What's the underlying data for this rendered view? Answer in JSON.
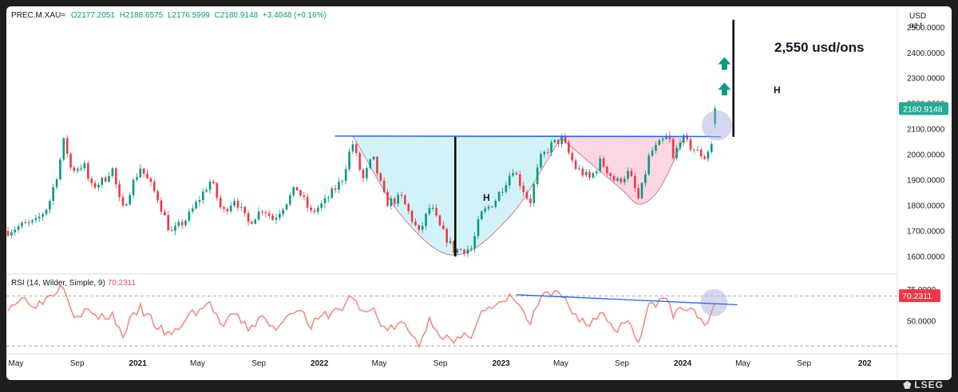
{
  "header": {
    "symbol": "PREC.M.XAU=",
    "open": "O2177.2051",
    "high": "H2188.6575",
    "low": "L2176.5999",
    "close": "C2180.9148",
    "change": "+3.4048 (+0.16%)"
  },
  "price_axis": {
    "currency": "USD",
    "unit": "oz t",
    "last_value": "2180.9148"
  },
  "rsi": {
    "title": "RSI (14, Wilder, Simple, 9)",
    "value": "70.2311",
    "last_value": "70.2311"
  },
  "annotations": {
    "target": "2,550 usd/ons",
    "cup_h": "H",
    "target_h": "H"
  },
  "branding": {
    "logo": "LSEG"
  },
  "colors": {
    "up": "#089981",
    "down": "#f23645",
    "resistance": "#2962ff",
    "cup_fill": "#b2ebf2",
    "handle_fill": "#f8bbd0",
    "rsi_line": "#f28b82",
    "highlight": "#9fa8da",
    "last_price_bg": "#22ab94",
    "rsi_badge_bg": "#f23645"
  },
  "chart_data": [
    {
      "type": "candlestick",
      "title": "PREC.M.XAU= (Gold spot, USD/oz t)",
      "y_axis": {
        "ticks": [
          1600,
          1700,
          1800,
          1900,
          2000,
          2100,
          2200,
          2300,
          2400,
          2500
        ],
        "tick_labels": [
          "1600.0000",
          "1700.0000",
          "1800.0000",
          "1900.0000",
          "2000.0000",
          "2100.0000",
          "2200.0000",
          "2300.0000",
          "2400.0000",
          "2500.0000"
        ],
        "ylim": [
          1540,
          2570
        ]
      },
      "x_axis": {
        "range": [
          "2020-04-15",
          "2025-03-01"
        ],
        "ticks": [
          {
            "date": "2020-05-01",
            "label": "May"
          },
          {
            "date": "2020-09-01",
            "label": "Sep"
          },
          {
            "date": "2021-01-01",
            "label": "2021"
          },
          {
            "date": "2021-05-01",
            "label": "May"
          },
          {
            "date": "2021-09-01",
            "label": "Sep"
          },
          {
            "date": "2022-01-01",
            "label": "2022"
          },
          {
            "date": "2022-05-01",
            "label": "May"
          },
          {
            "date": "2022-09-01",
            "label": "Sep"
          },
          {
            "date": "2023-01-01",
            "label": "2023"
          },
          {
            "date": "2023-05-01",
            "label": "May"
          },
          {
            "date": "2023-09-01",
            "label": "Sep"
          },
          {
            "date": "2024-01-01",
            "label": "2024"
          },
          {
            "date": "2024-05-01",
            "label": "May"
          },
          {
            "date": "2024-09-01",
            "label": "Sep"
          },
          {
            "date": "2025-01-01",
            "label": "202"
          }
        ]
      },
      "close_path": [
        [
          "2020-04-15",
          1700
        ],
        [
          "2020-05-10",
          1720
        ],
        [
          "2020-06-10",
          1735
        ],
        [
          "2020-07-05",
          1800
        ],
        [
          "2020-07-25",
          1940
        ],
        [
          "2020-08-06",
          2060
        ],
        [
          "2020-08-20",
          1940
        ],
        [
          "2020-09-15",
          1960
        ],
        [
          "2020-09-28",
          1870
        ],
        [
          "2020-10-25",
          1900
        ],
        [
          "2020-11-10",
          1950
        ],
        [
          "2020-11-30",
          1775
        ],
        [
          "2020-12-20",
          1880
        ],
        [
          "2021-01-06",
          1950
        ],
        [
          "2021-02-10",
          1830
        ],
        [
          "2021-03-08",
          1690
        ],
        [
          "2021-04-10",
          1750
        ],
        [
          "2021-05-28",
          1900
        ],
        [
          "2021-06-20",
          1770
        ],
        [
          "2021-07-15",
          1830
        ],
        [
          "2021-08-10",
          1730
        ],
        [
          "2021-09-10",
          1790
        ],
        [
          "2021-09-30",
          1745
        ],
        [
          "2021-11-16",
          1870
        ],
        [
          "2021-12-15",
          1770
        ],
        [
          "2022-01-10",
          1810
        ],
        [
          "2022-02-15",
          1900
        ],
        [
          "2022-03-08",
          2050
        ],
        [
          "2022-03-29",
          1900
        ],
        [
          "2022-04-18",
          1990
        ],
        [
          "2022-05-15",
          1810
        ],
        [
          "2022-06-15",
          1830
        ],
        [
          "2022-07-20",
          1690
        ],
        [
          "2022-08-12",
          1800
        ],
        [
          "2022-09-01",
          1710
        ],
        [
          "2022-09-28",
          1625
        ],
        [
          "2022-11-03",
          1630
        ],
        [
          "2022-11-20",
          1760
        ],
        [
          "2022-12-20",
          1820
        ],
        [
          "2023-01-25",
          1945
        ],
        [
          "2023-02-28",
          1810
        ],
        [
          "2023-03-20",
          1980
        ],
        [
          "2023-04-13",
          2040
        ],
        [
          "2023-05-04",
          2060
        ],
        [
          "2023-05-30",
          1950
        ],
        [
          "2023-06-29",
          1905
        ],
        [
          "2023-07-20",
          1975
        ],
        [
          "2023-08-20",
          1890
        ],
        [
          "2023-09-15",
          1930
        ],
        [
          "2023-10-05",
          1820
        ],
        [
          "2023-10-27",
          2005
        ],
        [
          "2023-12-04",
          2075
        ],
        [
          "2023-12-13",
          1980
        ],
        [
          "2023-12-28",
          2070
        ],
        [
          "2024-01-20",
          2025
        ],
        [
          "2024-02-14",
          1990
        ],
        [
          "2024-02-29",
          2045
        ],
        [
          "2024-03-05",
          2140
        ],
        [
          "2024-03-12",
          2180.9148
        ]
      ],
      "series": [
        {
          "name": "Resistance line",
          "type": "line",
          "x": [
            "2022-02-01",
            "2024-03-18"
          ],
          "y": [
            2073,
            2071
          ]
        },
        {
          "name": "Cup",
          "type": "area",
          "x": [
            "2022-03-10",
            "2022-06-15",
            "2022-09-28",
            "2023-01-20",
            "2023-05-01"
          ],
          "y": [
            2070,
            1760,
            1605,
            1760,
            2065
          ]
        },
        {
          "name": "Handle",
          "type": "area",
          "x": [
            "2023-05-01",
            "2023-09-01",
            "2023-10-06",
            "2023-11-15",
            "2024-01-05"
          ],
          "y": [
            2065,
            1862,
            1805,
            1865,
            2070
          ]
        },
        {
          "name": "Cup depth H",
          "type": "line",
          "x": [
            "2022-10-01",
            "2022-10-01"
          ],
          "y": [
            2070,
            1600
          ]
        },
        {
          "name": "Target projection H",
          "type": "line",
          "x": [
            "2024-04-12",
            "2024-04-12"
          ],
          "y": [
            2070,
            2530
          ]
        }
      ],
      "markers": [
        {
          "name": "Up arrow 1",
          "date": "2024-03-25",
          "y": 2255
        },
        {
          "name": "Up arrow 2",
          "date": "2024-03-25",
          "y": 2355
        },
        {
          "name": "Highlight",
          "date": "2024-03-05",
          "y": 2130
        }
      ],
      "legend": "none",
      "grid": false
    },
    {
      "type": "line",
      "title": "RSI (14, Wilder, Simple, 9)",
      "y_axis": {
        "ticks": [
          50,
          75
        ],
        "tick_labels": [
          "50.0000",
          "75.0000"
        ],
        "reference_lines": [
          70,
          30
        ],
        "ylim": [
          25,
          85
        ]
      },
      "series": [
        {
          "name": "RSI",
          "points": [
            [
              "2020-04-15",
              62
            ],
            [
              "2020-05-15",
              68
            ],
            [
              "2020-06-15",
              63
            ],
            [
              "2020-07-15",
              73
            ],
            [
              "2020-08-06",
              80
            ],
            [
              "2020-08-25",
              55
            ],
            [
              "2020-09-20",
              58
            ],
            [
              "2020-10-20",
              52
            ],
            [
              "2020-11-10",
              56
            ],
            [
              "2020-11-30",
              38
            ],
            [
              "2020-12-20",
              52
            ],
            [
              "2021-01-06",
              60
            ],
            [
              "2021-02-10",
              45
            ],
            [
              "2021-03-08",
              37
            ],
            [
              "2021-04-15",
              55
            ],
            [
              "2021-05-28",
              64
            ],
            [
              "2021-06-20",
              44
            ],
            [
              "2021-07-15",
              56
            ],
            [
              "2021-08-10",
              44
            ],
            [
              "2021-09-10",
              53
            ],
            [
              "2021-09-30",
              43
            ],
            [
              "2021-11-16",
              62
            ],
            [
              "2021-12-15",
              46
            ],
            [
              "2022-01-10",
              54
            ],
            [
              "2022-02-15",
              60
            ],
            [
              "2022-03-08",
              71
            ],
            [
              "2022-03-29",
              55
            ],
            [
              "2022-04-18",
              60
            ],
            [
              "2022-05-15",
              42
            ],
            [
              "2022-06-15",
              48
            ],
            [
              "2022-07-20",
              32
            ],
            [
              "2022-08-12",
              52
            ],
            [
              "2022-09-01",
              40
            ],
            [
              "2022-09-28",
              32
            ],
            [
              "2022-11-03",
              40
            ],
            [
              "2022-11-20",
              58
            ],
            [
              "2022-12-20",
              60
            ],
            [
              "2023-01-25",
              70
            ],
            [
              "2023-02-28",
              47
            ],
            [
              "2023-03-20",
              68
            ],
            [
              "2023-04-13",
              71
            ],
            [
              "2023-05-04",
              70
            ],
            [
              "2023-05-30",
              55
            ],
            [
              "2023-06-29",
              46
            ],
            [
              "2023-07-20",
              58
            ],
            [
              "2023-08-20",
              43
            ],
            [
              "2023-09-15",
              52
            ],
            [
              "2023-10-05",
              33
            ],
            [
              "2023-10-27",
              63
            ],
            [
              "2023-12-04",
              68
            ],
            [
              "2023-12-13",
              52
            ],
            [
              "2023-12-28",
              62
            ],
            [
              "2024-01-20",
              57
            ],
            [
              "2024-02-14",
              50
            ],
            [
              "2024-02-29",
              54
            ],
            [
              "2024-03-05",
              63
            ],
            [
              "2024-03-12",
              70.2311
            ]
          ]
        },
        {
          "name": "RSI trendline",
          "type": "line",
          "x": [
            "2023-02-01",
            "2024-04-20"
          ],
          "y": [
            71,
            63
          ]
        }
      ],
      "markers": [
        {
          "name": "RSI highlight",
          "date": "2024-03-01",
          "y": 66
        }
      ]
    }
  ]
}
